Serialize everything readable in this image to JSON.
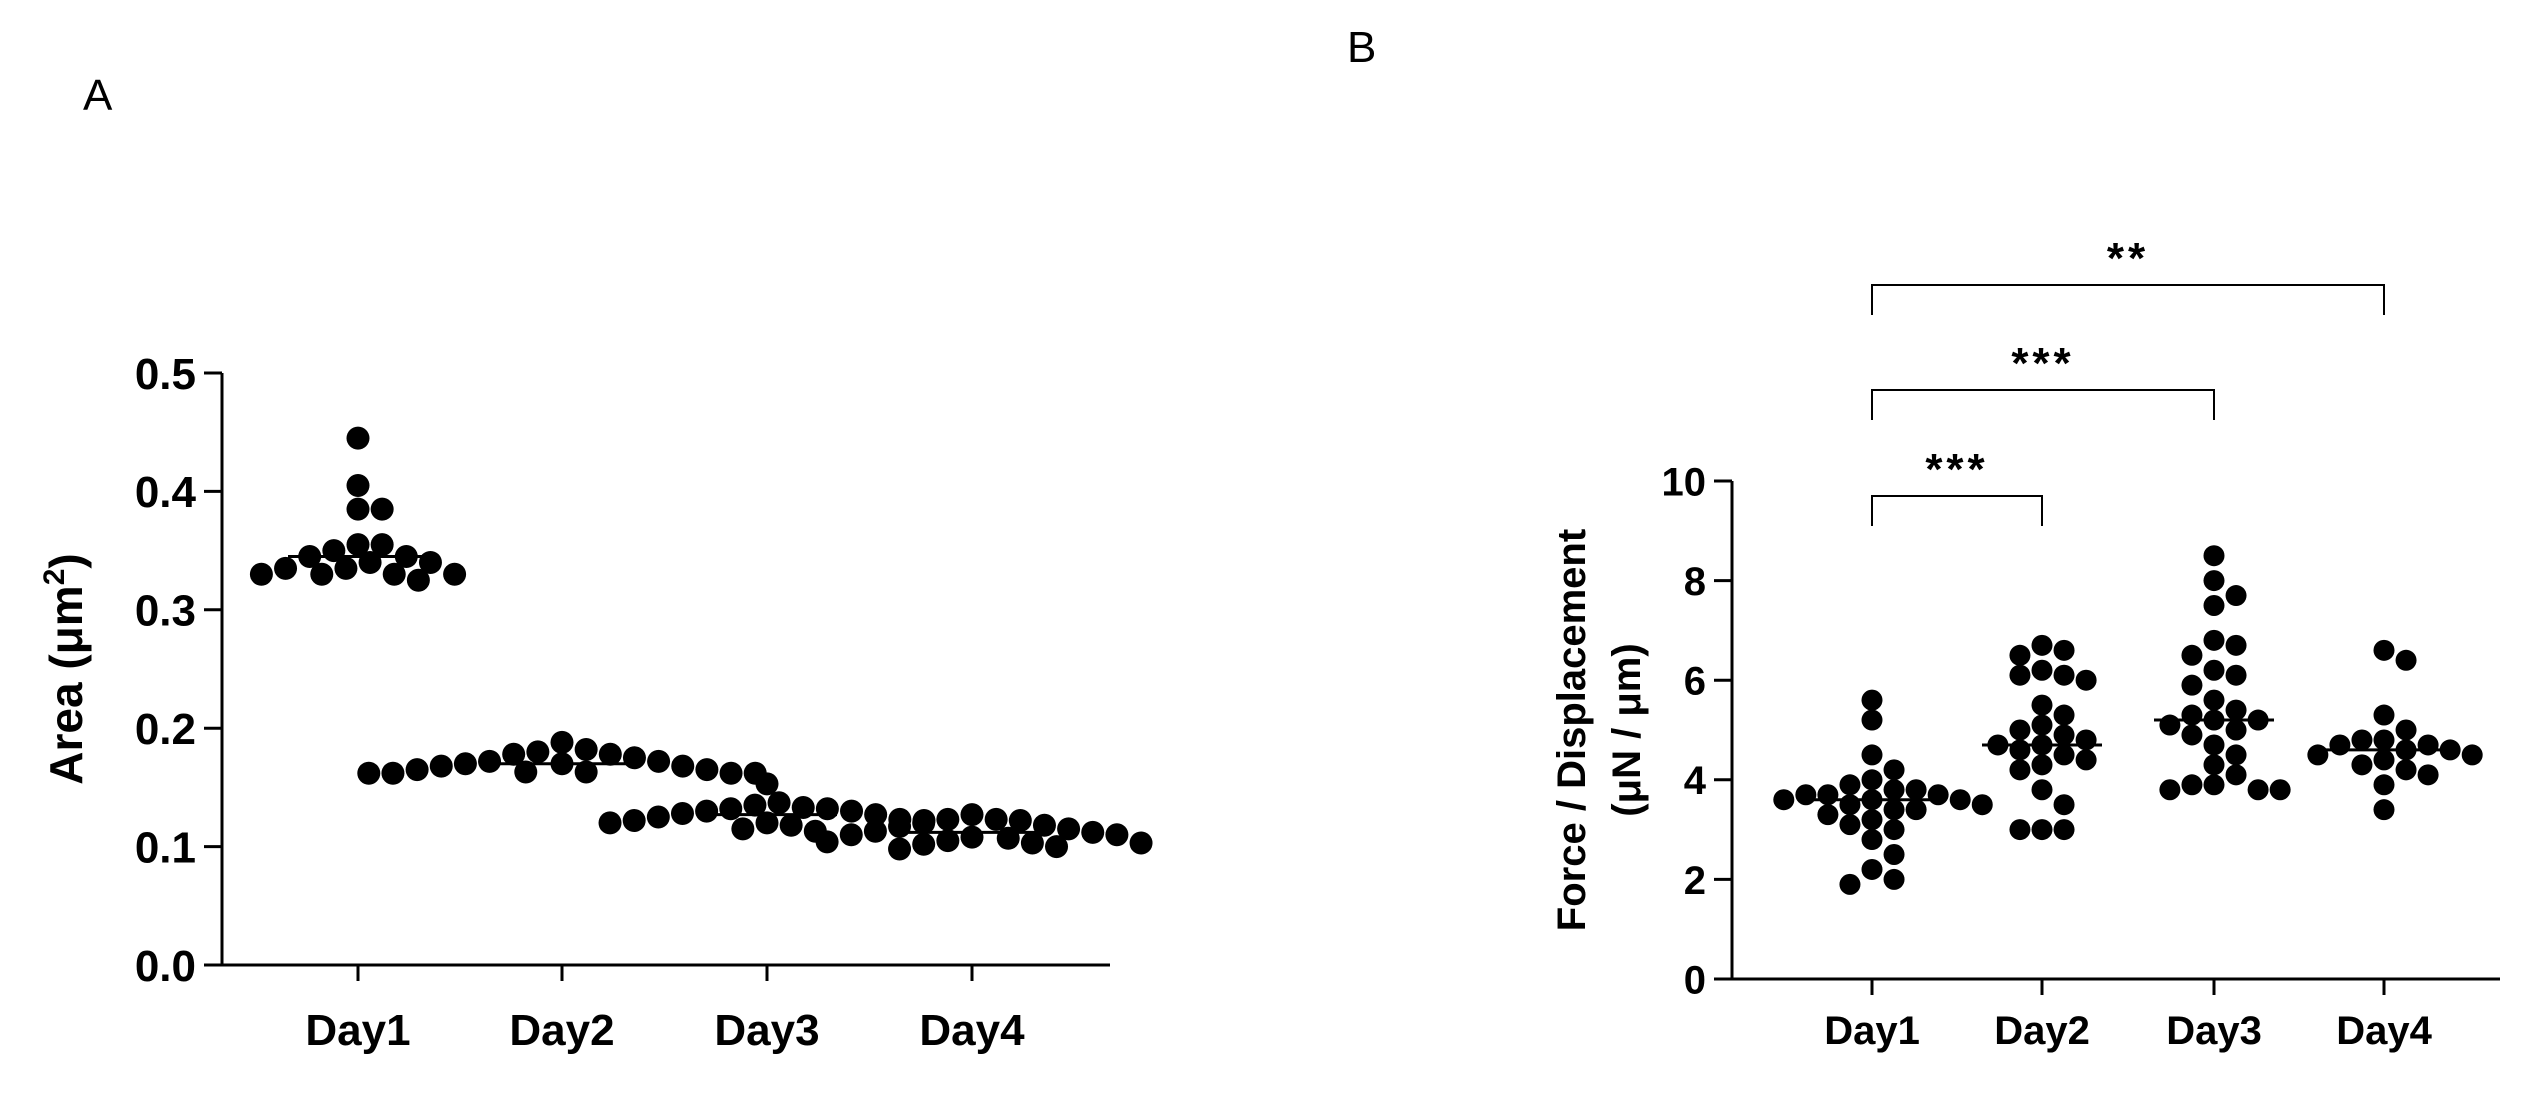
{
  "panels": {
    "a": {
      "letter": "A"
    },
    "b": {
      "letter": "B"
    }
  },
  "chart_data": [
    {
      "type": "scatter",
      "panel": "A",
      "title": "",
      "xlabel": "",
      "ylabel": "Area (μm²)",
      "ylabel_main": "Area (μm",
      "ylabel_sup": "2",
      "ylabel_close": ")",
      "ylim": [
        0,
        0.5
      ],
      "yticks": [
        0.0,
        0.1,
        0.2,
        0.3,
        0.4,
        0.5
      ],
      "ytick_labels": [
        "0.0",
        "0.1",
        "0.2",
        "0.3",
        "0.4",
        "0.5"
      ],
      "categories": [
        "Day1",
        "Day2",
        "Day3",
        "Day4"
      ],
      "show_median_line": true,
      "grid": false,
      "series": [
        {
          "category": "Day1",
          "median": 0.345,
          "values": [
            0.445,
            0.405,
            0.385,
            0.385,
            0.355,
            0.35,
            0.355,
            0.345,
            0.34,
            0.345,
            0.34,
            0.335,
            0.335,
            0.33,
            0.33,
            0.33,
            0.33,
            0.325
          ]
        },
        {
          "category": "Day2",
          "median": 0.17,
          "values": [
            0.188,
            0.182,
            0.18,
            0.178,
            0.178,
            0.175,
            0.172,
            0.172,
            0.17,
            0.17,
            0.168,
            0.168,
            0.165,
            0.165,
            0.163,
            0.163,
            0.162,
            0.162,
            0.162,
            0.162
          ]
        },
        {
          "category": "Day3",
          "median": 0.127,
          "values": [
            0.153,
            0.137,
            0.135,
            0.133,
            0.132,
            0.132,
            0.13,
            0.13,
            0.128,
            0.127,
            0.125,
            0.123,
            0.122,
            0.122,
            0.12,
            0.12,
            0.118,
            0.115,
            0.113
          ]
        },
        {
          "category": "Day4",
          "median": 0.112,
          "values": [
            0.127,
            0.123,
            0.123,
            0.122,
            0.12,
            0.118,
            0.117,
            0.115,
            0.113,
            0.112,
            0.11,
            0.11,
            0.108,
            0.107,
            0.105,
            0.104,
            0.103,
            0.103,
            0.102,
            0.1,
            0.098
          ]
        }
      ]
    },
    {
      "type": "scatter",
      "panel": "B",
      "title": "",
      "xlabel": "",
      "ylabel": "Force / Displacement",
      "ylabel_line2": "(μN / μm)",
      "ylim": [
        0,
        10
      ],
      "yticks": [
        0,
        2,
        4,
        6,
        8,
        10
      ],
      "ytick_labels": [
        "0",
        "2",
        "4",
        "6",
        "8",
        "10"
      ],
      "categories": [
        "Day1",
        "Day2",
        "Day3",
        "Day4"
      ],
      "show_median_line": true,
      "grid": false,
      "series": [
        {
          "category": "Day1",
          "median": 3.6,
          "values": [
            5.6,
            5.2,
            4.5,
            4.2,
            4.0,
            3.9,
            3.8,
            3.8,
            3.7,
            3.7,
            3.7,
            3.6,
            3.6,
            3.6,
            3.5,
            3.5,
            3.4,
            3.4,
            3.3,
            3.2,
            3.1,
            3.0,
            2.8,
            2.5,
            2.2,
            2.0,
            1.9
          ]
        },
        {
          "category": "Day2",
          "median": 4.7,
          "values": [
            6.7,
            6.6,
            6.5,
            6.2,
            6.1,
            6.1,
            6.0,
            5.5,
            5.3,
            5.1,
            5.0,
            4.9,
            4.8,
            4.7,
            4.7,
            4.6,
            4.5,
            4.4,
            4.3,
            4.2,
            3.8,
            3.5,
            3.0,
            3.0,
            3.0
          ]
        },
        {
          "category": "Day3",
          "median": 5.2,
          "values": [
            8.5,
            8.0,
            7.7,
            7.5,
            6.8,
            6.7,
            6.5,
            6.2,
            6.1,
            5.9,
            5.6,
            5.4,
            5.3,
            5.2,
            5.2,
            5.1,
            5.0,
            4.9,
            4.7,
            4.5,
            4.3,
            4.1,
            3.9,
            3.9,
            3.8,
            3.8,
            3.8
          ]
        },
        {
          "category": "Day4",
          "median": 4.6,
          "values": [
            6.6,
            6.4,
            5.3,
            5.0,
            4.8,
            4.8,
            4.7,
            4.7,
            4.6,
            4.6,
            4.5,
            4.5,
            4.4,
            4.3,
            4.2,
            4.1,
            3.9,
            3.4
          ]
        }
      ],
      "comparisons": [
        {
          "from": "Day1",
          "to": "Day2",
          "label": "***"
        },
        {
          "from": "Day1",
          "to": "Day3",
          "label": "***"
        },
        {
          "from": "Day1",
          "to": "Day4",
          "label": "**"
        }
      ]
    }
  ]
}
